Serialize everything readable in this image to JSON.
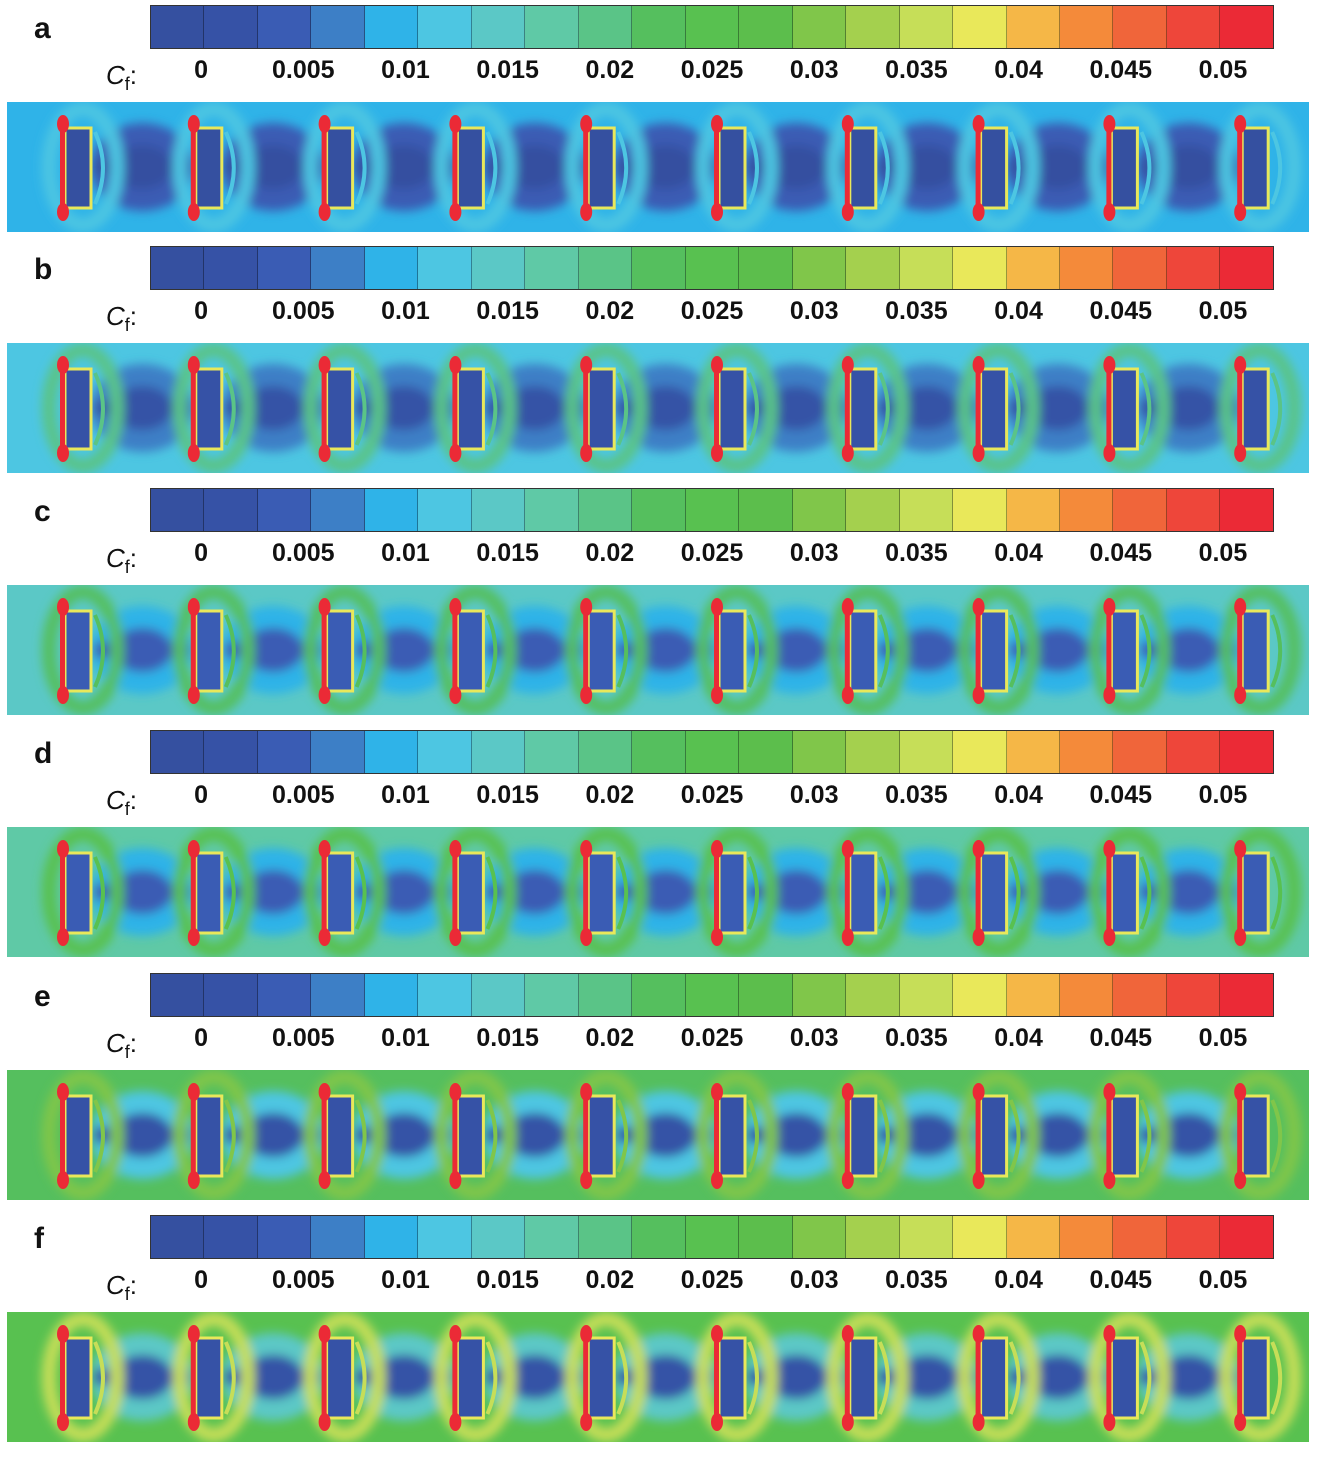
{
  "figure": {
    "colorbar": {
      "label_main": "C",
      "label_sub": "f",
      "label_suffix": ":",
      "ticks": [
        "0",
        "0.005",
        "0.01",
        "0.015",
        "0.02",
        "0.025",
        "0.03",
        "0.035",
        "0.04",
        "0.045",
        "0.05"
      ],
      "colors": [
        "#3550a0",
        "#3652a6",
        "#3a5cb4",
        "#3d7fc6",
        "#2fb3e8",
        "#4dc6e2",
        "#5bc8c6",
        "#5fc9a6",
        "#5ac487",
        "#55bf5e",
        "#58c150",
        "#5cbe4c",
        "#80c64a",
        "#a4d04e",
        "#c6de58",
        "#e9e85a",
        "#f5b747",
        "#f48a3a",
        "#f0653a",
        "#ee463a",
        "#eb2a36"
      ]
    },
    "panels": [
      {
        "letter": "a"
      },
      {
        "letter": "b"
      },
      {
        "letter": "c"
      },
      {
        "letter": "d"
      },
      {
        "letter": "e"
      },
      {
        "letter": "f"
      }
    ]
  },
  "chart_data": {
    "type": "heatmap",
    "title": "",
    "colorbar_label": "Cf",
    "range": [
      -0.0025,
      0.0525
    ],
    "levels": 21,
    "tick_values": [
      0,
      0.005,
      0.01,
      0.015,
      0.02,
      0.025,
      0.03,
      0.035,
      0.04,
      0.045,
      0.05
    ],
    "panels": [
      {
        "letter": "a",
        "elements": 10,
        "background_cf": 0.008,
        "gap_low_cf": 0.0,
        "ring_cf": 0.013,
        "edge_peak_cf": 0.05
      },
      {
        "letter": "b",
        "elements": 10,
        "background_cf": 0.012,
        "gap_low_cf": 0.002,
        "ring_cf": 0.02,
        "edge_peak_cf": 0.05
      },
      {
        "letter": "c",
        "elements": 10,
        "background_cf": 0.015,
        "gap_low_cf": 0.003,
        "ring_cf": 0.023,
        "edge_peak_cf": 0.05
      },
      {
        "letter": "d",
        "elements": 10,
        "background_cf": 0.017,
        "gap_low_cf": 0.003,
        "ring_cf": 0.025,
        "edge_peak_cf": 0.05
      },
      {
        "letter": "e",
        "elements": 10,
        "background_cf": 0.022,
        "gap_low_cf": 0.002,
        "ring_cf": 0.03,
        "edge_peak_cf": 0.05
      },
      {
        "letter": "f",
        "elements": 10,
        "background_cf": 0.025,
        "gap_low_cf": 0.002,
        "ring_cf": 0.035,
        "edge_peak_cf": 0.05
      }
    ]
  }
}
